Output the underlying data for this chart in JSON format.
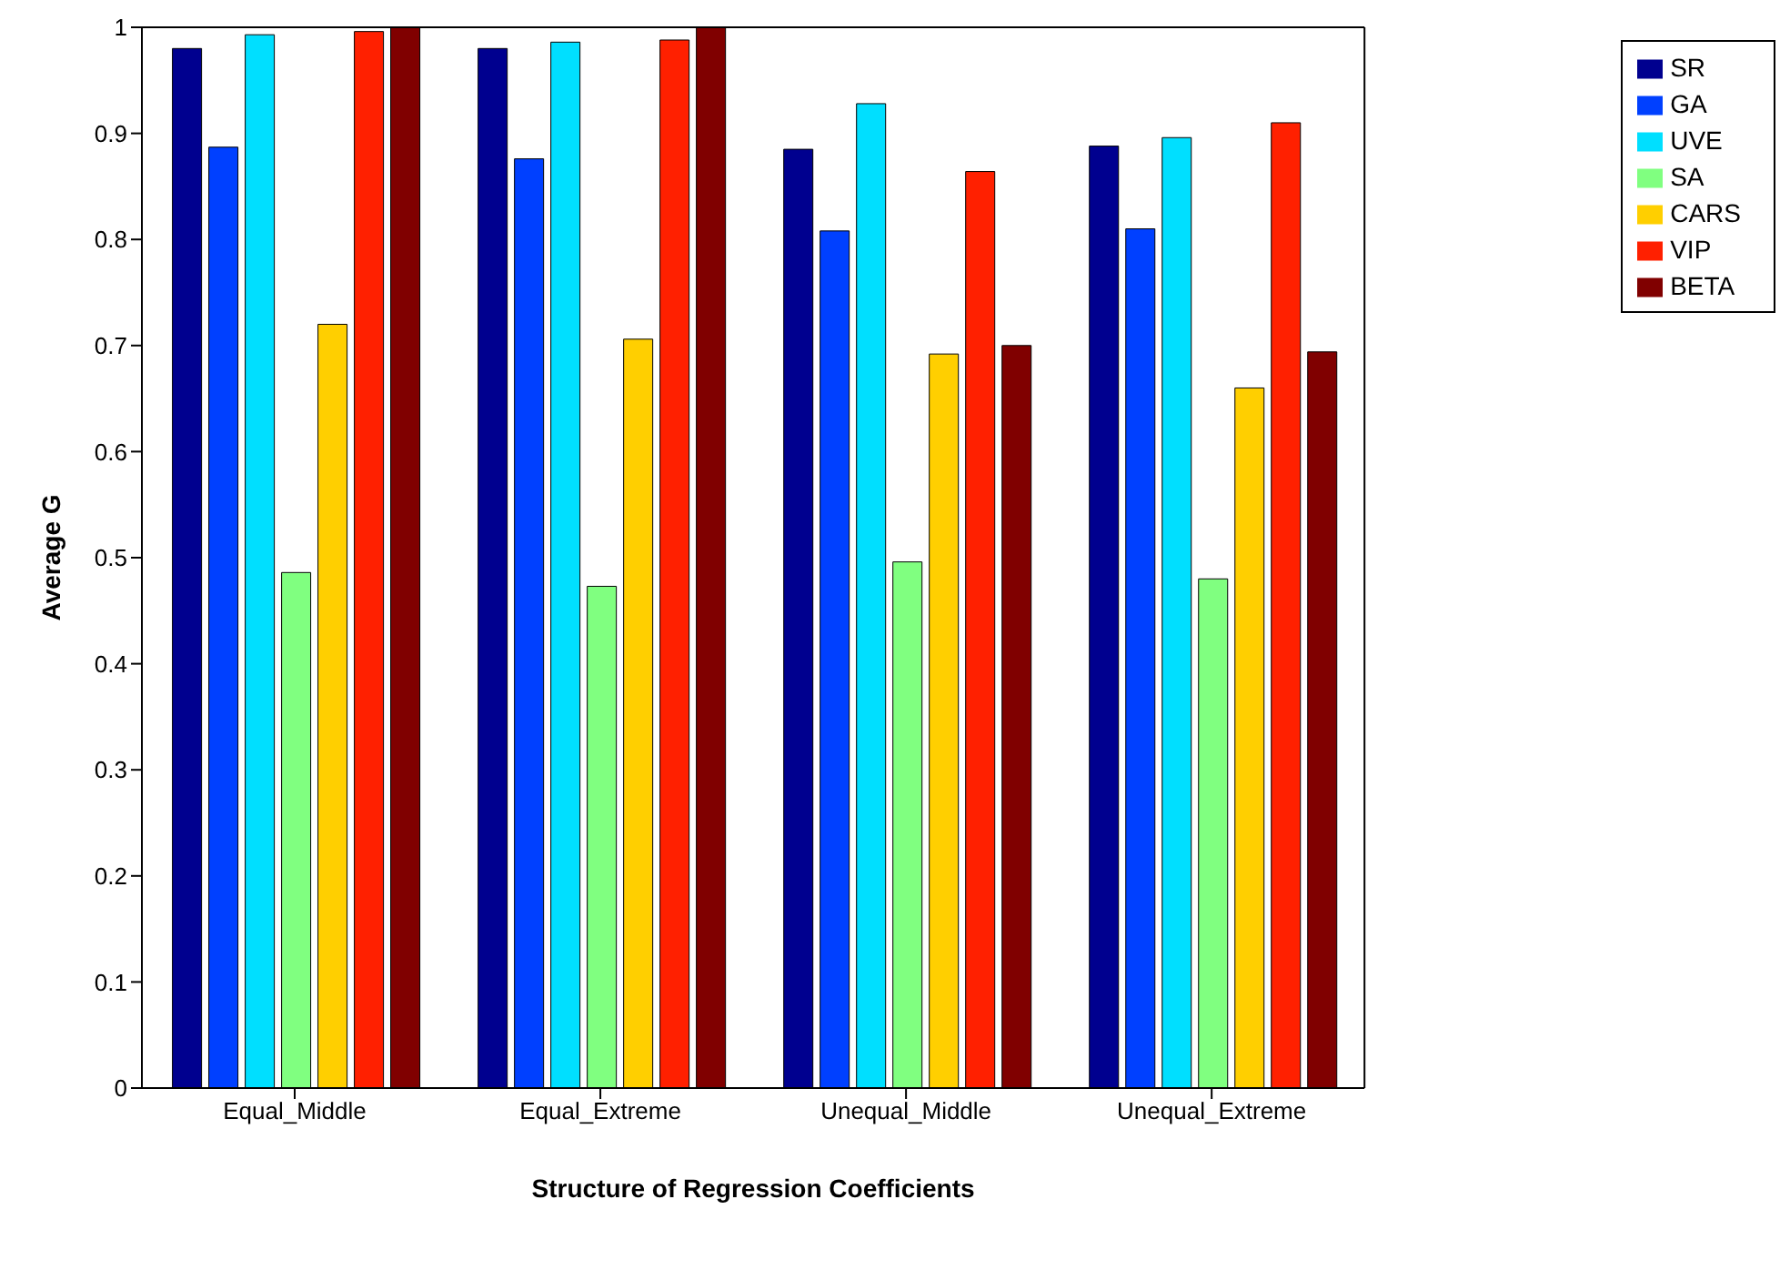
{
  "chart_data": {
    "type": "bar",
    "xlabel": "Structure of Regression Coefficients",
    "ylabel": "Average G",
    "categories": [
      "Equal_Middle",
      "Equal_Extreme",
      "Unequal_Middle",
      "Unequal_Extreme"
    ],
    "series": [
      {
        "name": "SR",
        "color": "#00008f",
        "values": [
          0.98,
          0.98,
          0.885,
          0.888
        ]
      },
      {
        "name": "GA",
        "color": "#0040ff",
        "values": [
          0.887,
          0.876,
          0.808,
          0.81
        ]
      },
      {
        "name": "UVE",
        "color": "#00dfff",
        "values": [
          0.993,
          0.986,
          0.928,
          0.896
        ]
      },
      {
        "name": "SA",
        "color": "#80ff80",
        "values": [
          0.486,
          0.473,
          0.496,
          0.48
        ]
      },
      {
        "name": "CARS",
        "color": "#ffcf00",
        "values": [
          0.72,
          0.706,
          0.692,
          0.66
        ]
      },
      {
        "name": "VIP",
        "color": "#ff2000",
        "values": [
          0.996,
          0.988,
          0.864,
          0.91
        ]
      },
      {
        "name": "BETA",
        "color": "#800000",
        "values": [
          1,
          1,
          0.7,
          0.694
        ]
      }
    ],
    "ylim": [
      0,
      1
    ],
    "yticks": [
      0,
      0.1,
      0.2,
      0.3,
      0.4,
      0.5,
      0.6,
      0.7,
      0.8,
      0.9,
      1
    ],
    "grid": false,
    "legend": "top right"
  }
}
